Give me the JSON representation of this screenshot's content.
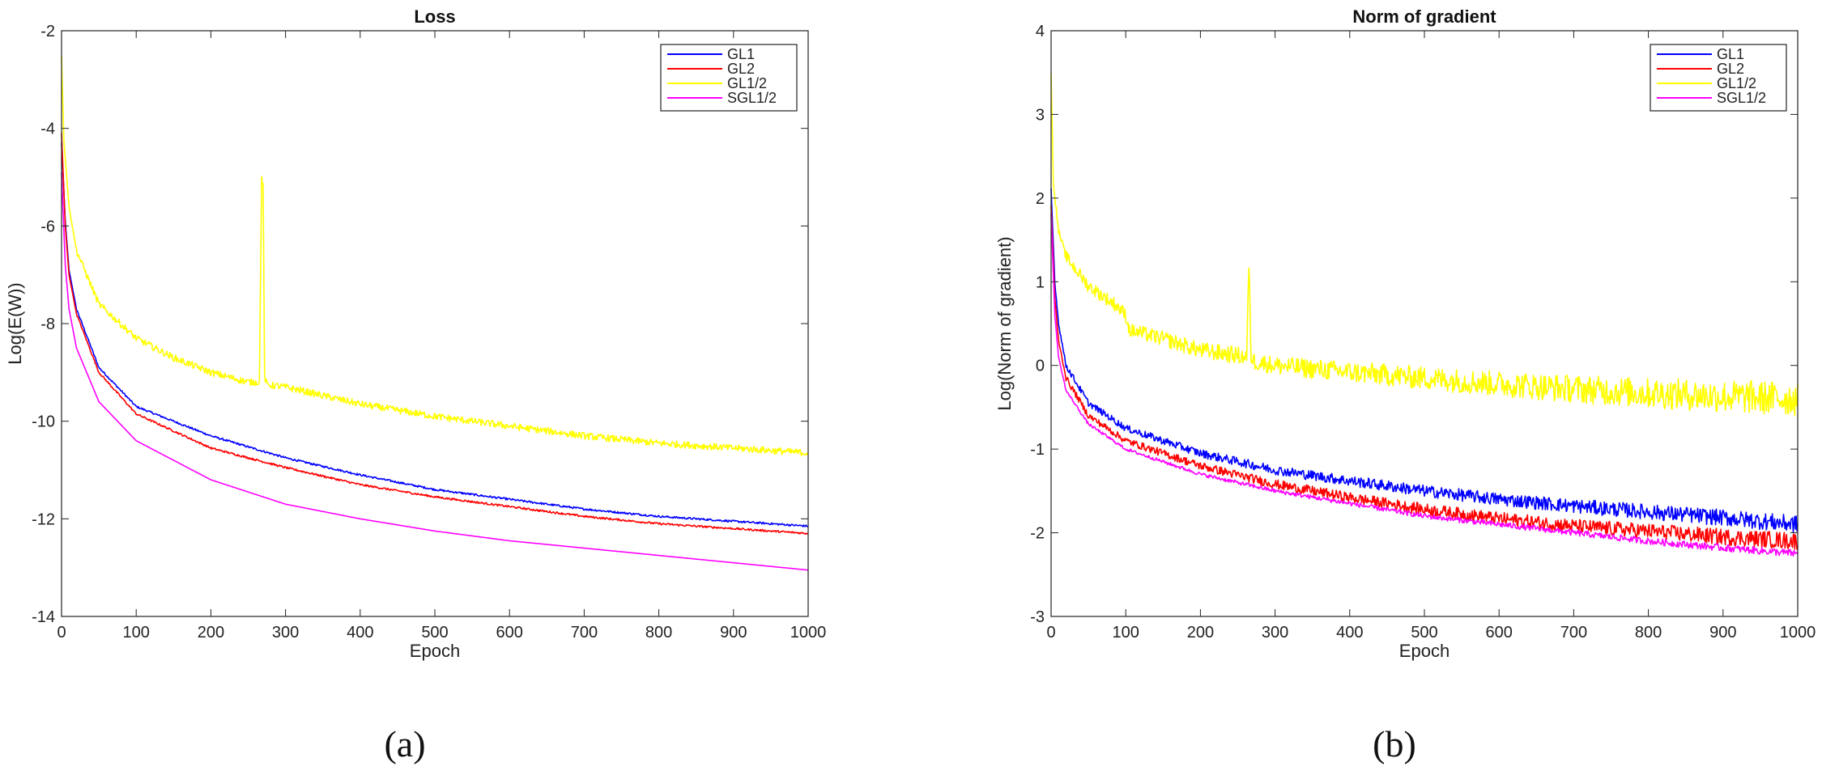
{
  "chart_data": [
    {
      "type": "line",
      "title": "Loss",
      "xlabel": "Epoch",
      "ylabel": "Log(E(W))",
      "xlim": [
        0,
        1000
      ],
      "ylim": [
        -14,
        -2
      ],
      "xticks": [
        0,
        100,
        200,
        300,
        400,
        500,
        600,
        700,
        800,
        900,
        1000
      ],
      "yticks": [
        -14,
        -12,
        -10,
        -8,
        -6,
        -4,
        -2
      ],
      "legend_position": "top-right",
      "subfigure_label": "(a)",
      "series": [
        {
          "name": "GL1",
          "color": "#0000ff",
          "x": [
            0,
            5,
            10,
            20,
            50,
            100,
            200,
            300,
            400,
            500,
            600,
            700,
            800,
            900,
            1000
          ],
          "y": [
            -4.3,
            -5.9,
            -6.9,
            -7.7,
            -8.9,
            -9.7,
            -10.3,
            -10.75,
            -11.1,
            -11.4,
            -11.6,
            -11.8,
            -11.95,
            -12.05,
            -12.15
          ]
        },
        {
          "name": "GL2",
          "color": "#ff0000",
          "x": [
            0,
            5,
            10,
            20,
            50,
            100,
            200,
            300,
            400,
            500,
            600,
            700,
            800,
            900,
            1000
          ],
          "y": [
            -4.1,
            -6.0,
            -7.0,
            -7.8,
            -9.0,
            -9.85,
            -10.55,
            -10.95,
            -11.3,
            -11.55,
            -11.75,
            -11.95,
            -12.1,
            -12.2,
            -12.3
          ]
        },
        {
          "name": "GL1/2",
          "color": "#ffff00",
          "x": [
            0,
            3,
            10,
            20,
            50,
            100,
            150,
            200,
            250,
            265,
            268,
            270,
            272,
            275,
            300,
            400,
            500,
            600,
            700,
            800,
            900,
            1000
          ],
          "y": [
            -2.5,
            -4.2,
            -5.6,
            -6.5,
            -7.6,
            -8.3,
            -8.7,
            -9.0,
            -9.2,
            -9.2,
            -5.0,
            -5.2,
            -9.1,
            -9.25,
            -9.3,
            -9.65,
            -9.9,
            -10.1,
            -10.3,
            -10.45,
            -10.55,
            -10.65
          ]
        },
        {
          "name": "SGL1/2",
          "color": "#ff00ff",
          "x": [
            0,
            5,
            10,
            20,
            50,
            100,
            200,
            300,
            400,
            500,
            600,
            700,
            800,
            900,
            1000
          ],
          "y": [
            -4.9,
            -6.8,
            -7.7,
            -8.5,
            -9.6,
            -10.4,
            -11.2,
            -11.7,
            -12.0,
            -12.25,
            -12.45,
            -12.6,
            -12.75,
            -12.9,
            -13.05
          ]
        }
      ]
    },
    {
      "type": "line",
      "title": "Norm of gradient",
      "xlabel": "Epoch",
      "ylabel": "Log(Norm of gradient)",
      "xlim": [
        0,
        1000
      ],
      "ylim": [
        -3,
        4
      ],
      "xticks": [
        0,
        100,
        200,
        300,
        400,
        500,
        600,
        700,
        800,
        900,
        1000
      ],
      "yticks": [
        -3,
        -2,
        -1,
        0,
        1,
        2,
        3,
        4
      ],
      "legend_position": "top-right",
      "subfigure_label": "(b)",
      "series": [
        {
          "name": "GL1",
          "color": "#0000ff",
          "x": [
            0,
            5,
            10,
            20,
            50,
            100,
            200,
            300,
            400,
            500,
            600,
            700,
            800,
            900,
            1000
          ],
          "y": [
            2.1,
            1.0,
            0.5,
            0.0,
            -0.45,
            -0.75,
            -1.05,
            -1.25,
            -1.38,
            -1.5,
            -1.6,
            -1.68,
            -1.75,
            -1.82,
            -1.9
          ]
        },
        {
          "name": "GL2",
          "color": "#ff0000",
          "x": [
            0,
            5,
            10,
            20,
            50,
            100,
            200,
            300,
            400,
            500,
            600,
            700,
            800,
            900,
            1000
          ],
          "y": [
            1.9,
            0.8,
            0.3,
            -0.15,
            -0.6,
            -0.9,
            -1.2,
            -1.42,
            -1.58,
            -1.72,
            -1.83,
            -1.92,
            -1.98,
            -2.05,
            -2.1
          ]
        },
        {
          "name": "GL1/2",
          "color": "#ffff00",
          "x": [
            0,
            3,
            10,
            20,
            50,
            90,
            100,
            105,
            150,
            200,
            250,
            262,
            265,
            268,
            272,
            300,
            400,
            500,
            600,
            700,
            800,
            900,
            1000
          ],
          "y": [
            3.5,
            2.2,
            1.6,
            1.3,
            0.95,
            0.7,
            0.6,
            0.42,
            0.32,
            0.18,
            0.12,
            0.1,
            1.2,
            0.1,
            0.05,
            0.0,
            -0.08,
            -0.15,
            -0.22,
            -0.28,
            -0.33,
            -0.37,
            -0.4
          ]
        },
        {
          "name": "SGL1/2",
          "color": "#ff00ff",
          "x": [
            0,
            5,
            10,
            20,
            50,
            100,
            200,
            300,
            400,
            500,
            600,
            700,
            800,
            900,
            1000
          ],
          "y": [
            1.8,
            0.6,
            0.1,
            -0.3,
            -0.7,
            -1.0,
            -1.3,
            -1.5,
            -1.65,
            -1.8,
            -1.9,
            -2.0,
            -2.1,
            -2.18,
            -2.25
          ]
        }
      ]
    }
  ]
}
